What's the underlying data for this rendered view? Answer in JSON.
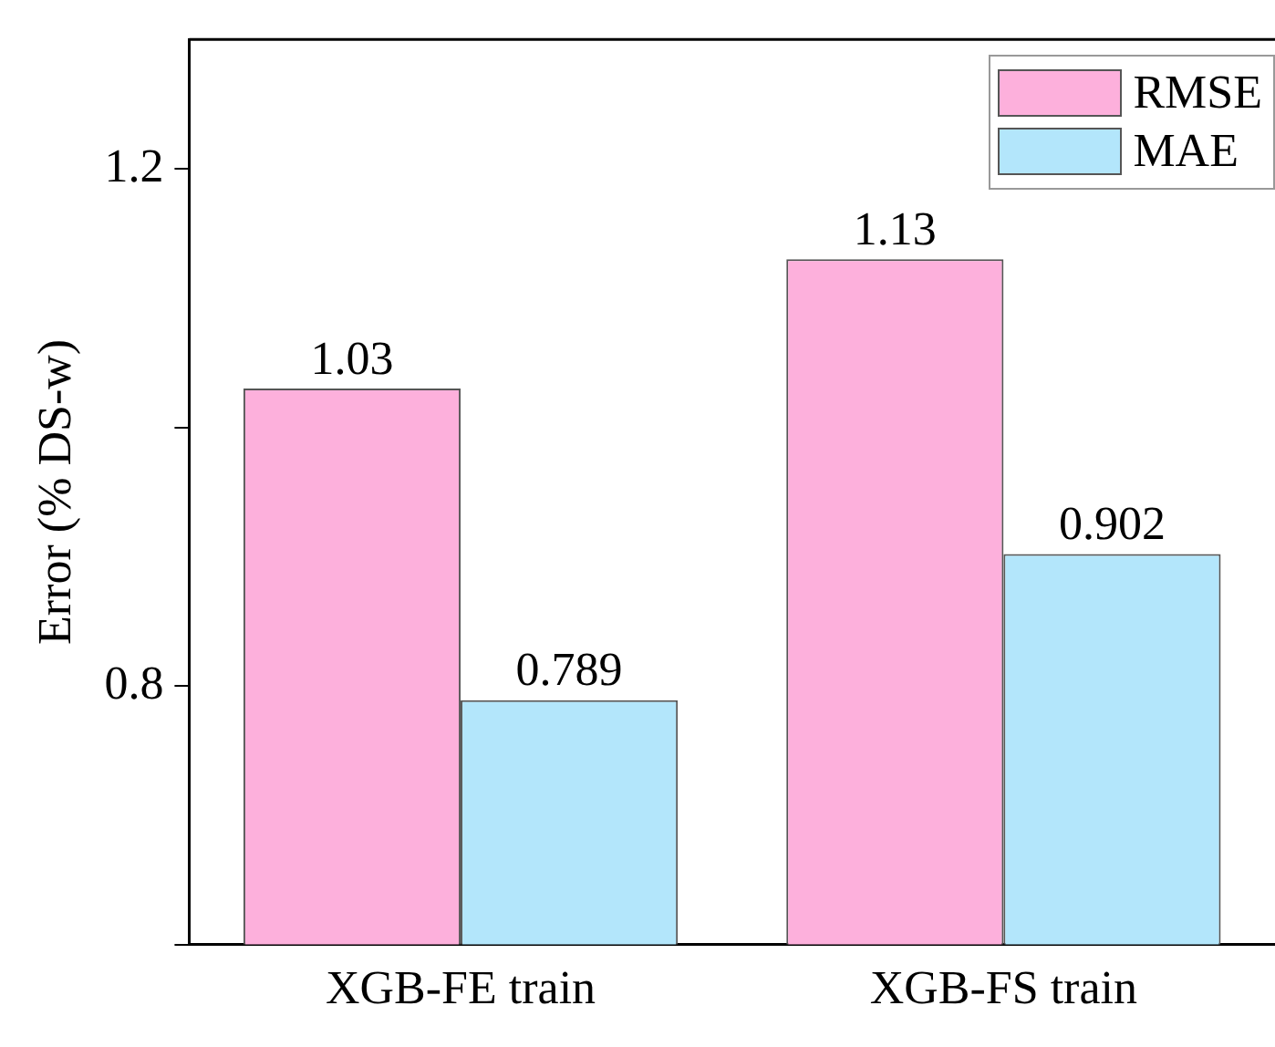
{
  "chart_data": {
    "type": "bar",
    "categories": [
      "XGB-FE train",
      "XGB-FS train"
    ],
    "series": [
      {
        "name": "RMSE",
        "color": "#fdb0dc",
        "values": [
          1.03,
          1.13
        ]
      },
      {
        "name": "MAE",
        "color": "#b3e6fb",
        "values": [
          0.789,
          0.902
        ]
      }
    ],
    "ylabel": "Error (% DS-w)",
    "ylim": [
      0.6,
      1.3
    ],
    "yticks": [
      {
        "value": 0.6,
        "label": null
      },
      0.8,
      {
        "value": 1.0,
        "label": null
      },
      1.2
    ],
    "data_labels": true,
    "legend": "top right",
    "grid": false
  }
}
